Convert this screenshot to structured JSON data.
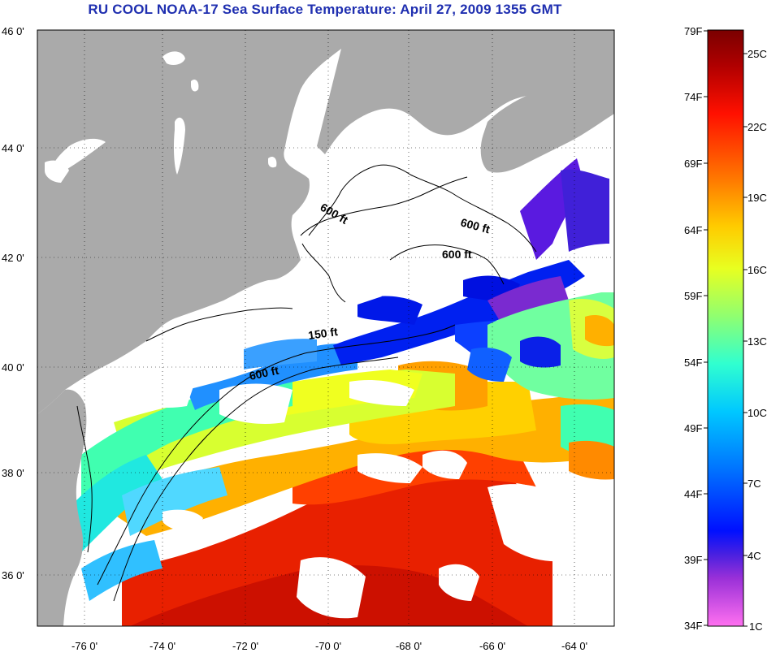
{
  "title": "RU COOL  NOAA-17  Sea Surface Temperature:  April 27, 2009 1355 GMT",
  "map": {
    "lat_ticks": [
      "46 0'",
      "44 0'",
      "42 0'",
      "40 0'",
      "38 0'",
      "36 0'"
    ],
    "lon_ticks": [
      "-76 0'",
      "-74 0'",
      "-72 0'",
      "-70 0'",
      "-68 0'",
      "-66 0'",
      "-64 0'"
    ],
    "isobath_labels": [
      "600 ft",
      "600 ft",
      "600 ft",
      "150 ft",
      "600 ft"
    ],
    "colors": {
      "land": "#aaaaaa",
      "cloud": "#ffffff",
      "coast": "#000000"
    }
  },
  "colorbar": {
    "fahrenheit": [
      "79F",
      "74F",
      "69F",
      "64F",
      "59F",
      "54F",
      "49F",
      "44F",
      "39F",
      "34F"
    ],
    "celsius": [
      "25C",
      "22C",
      "19C",
      "16C",
      "13C",
      "10C",
      "7C",
      "4C",
      "1C"
    ],
    "gradient": [
      "#7a0000",
      "#c40000",
      "#ff1400",
      "#ff7a00",
      "#ffc800",
      "#e6ff1a",
      "#9bff66",
      "#32ffcc",
      "#00c8ff",
      "#0078ff",
      "#0014ff",
      "#0000d0",
      "#8a2be2",
      "#d23cd2",
      "#ff50e6",
      "#ff78f0"
    ]
  }
}
